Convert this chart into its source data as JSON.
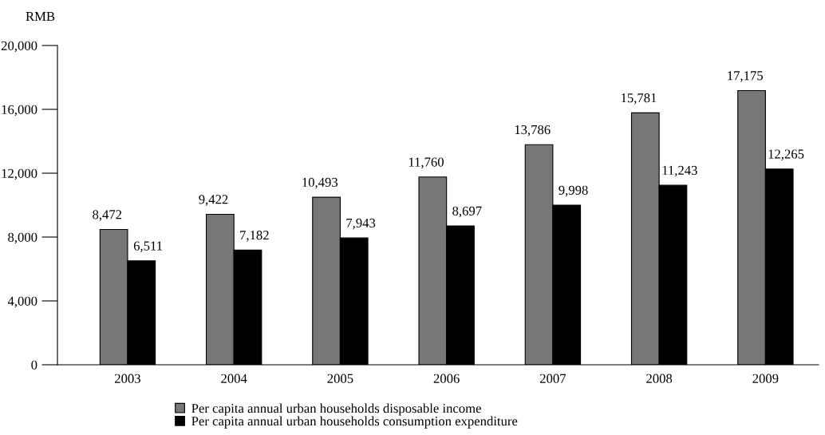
{
  "chart_data": {
    "type": "bar",
    "ylabel": "RMB",
    "categories": [
      "2003",
      "2004",
      "2005",
      "2006",
      "2007",
      "2008",
      "2009"
    ],
    "series": [
      {
        "name": "Per capita annual urban households disposable income",
        "color": "#777777",
        "values": [
          8472,
          9422,
          10493,
          11760,
          13786,
          15781,
          17175
        ]
      },
      {
        "name": "Per capita annual urban households consumption expenditure",
        "color": "#000000",
        "values": [
          6511,
          7182,
          7943,
          8697,
          9998,
          11243,
          12265
        ]
      }
    ],
    "ylim": [
      0,
      20000
    ],
    "yticks": [
      {
        "value": 0,
        "label": "0"
      },
      {
        "value": 4000,
        "label": "4,000"
      },
      {
        "value": 8000,
        "label": "8,000"
      },
      {
        "value": 12000,
        "label": "12,000"
      },
      {
        "value": 16000,
        "label": "16,000"
      },
      {
        "value": 20000,
        "label": "20,000"
      }
    ],
    "value_labels": [
      [
        "8,472",
        "9,422",
        "10,493",
        "11,760",
        "13,786",
        "15,781",
        "17,175"
      ],
      [
        "6,511",
        "7,182",
        "7,943",
        "8,697",
        "9,998",
        "11,243",
        "12,265"
      ]
    ],
    "grid": false,
    "legend": "bottom"
  }
}
